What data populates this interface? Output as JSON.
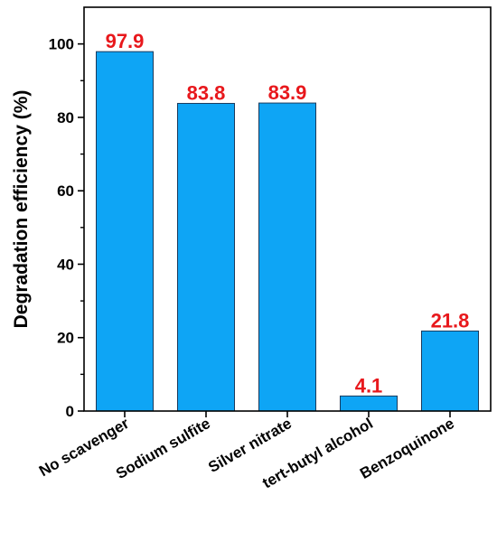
{
  "chart_data": {
    "type": "bar",
    "categories": [
      "No scavenger",
      "Sodium sulfite",
      "Silver nitrate",
      "tert-butyl alcohol",
      "Benzoquinone"
    ],
    "values": [
      97.9,
      83.8,
      83.9,
      4.1,
      21.8
    ],
    "data_labels": [
      "97.9",
      "83.8",
      "83.9",
      "4.1",
      "21.8"
    ],
    "title": "",
    "xlabel": "",
    "ylabel": "Degradation efficiency (%)",
    "ylim": [
      0,
      110
    ],
    "yticks": [
      0,
      20,
      40,
      60,
      80,
      100
    ],
    "ytick_labels": [
      "0",
      "20",
      "40",
      "60",
      "80",
      "100"
    ],
    "grid": false,
    "legend": "none",
    "colors": {
      "bar_fill": "#0ea5f5",
      "bar_stroke": "#1a3a5c",
      "data_label": "#e8181c",
      "axis": "#000000"
    }
  }
}
